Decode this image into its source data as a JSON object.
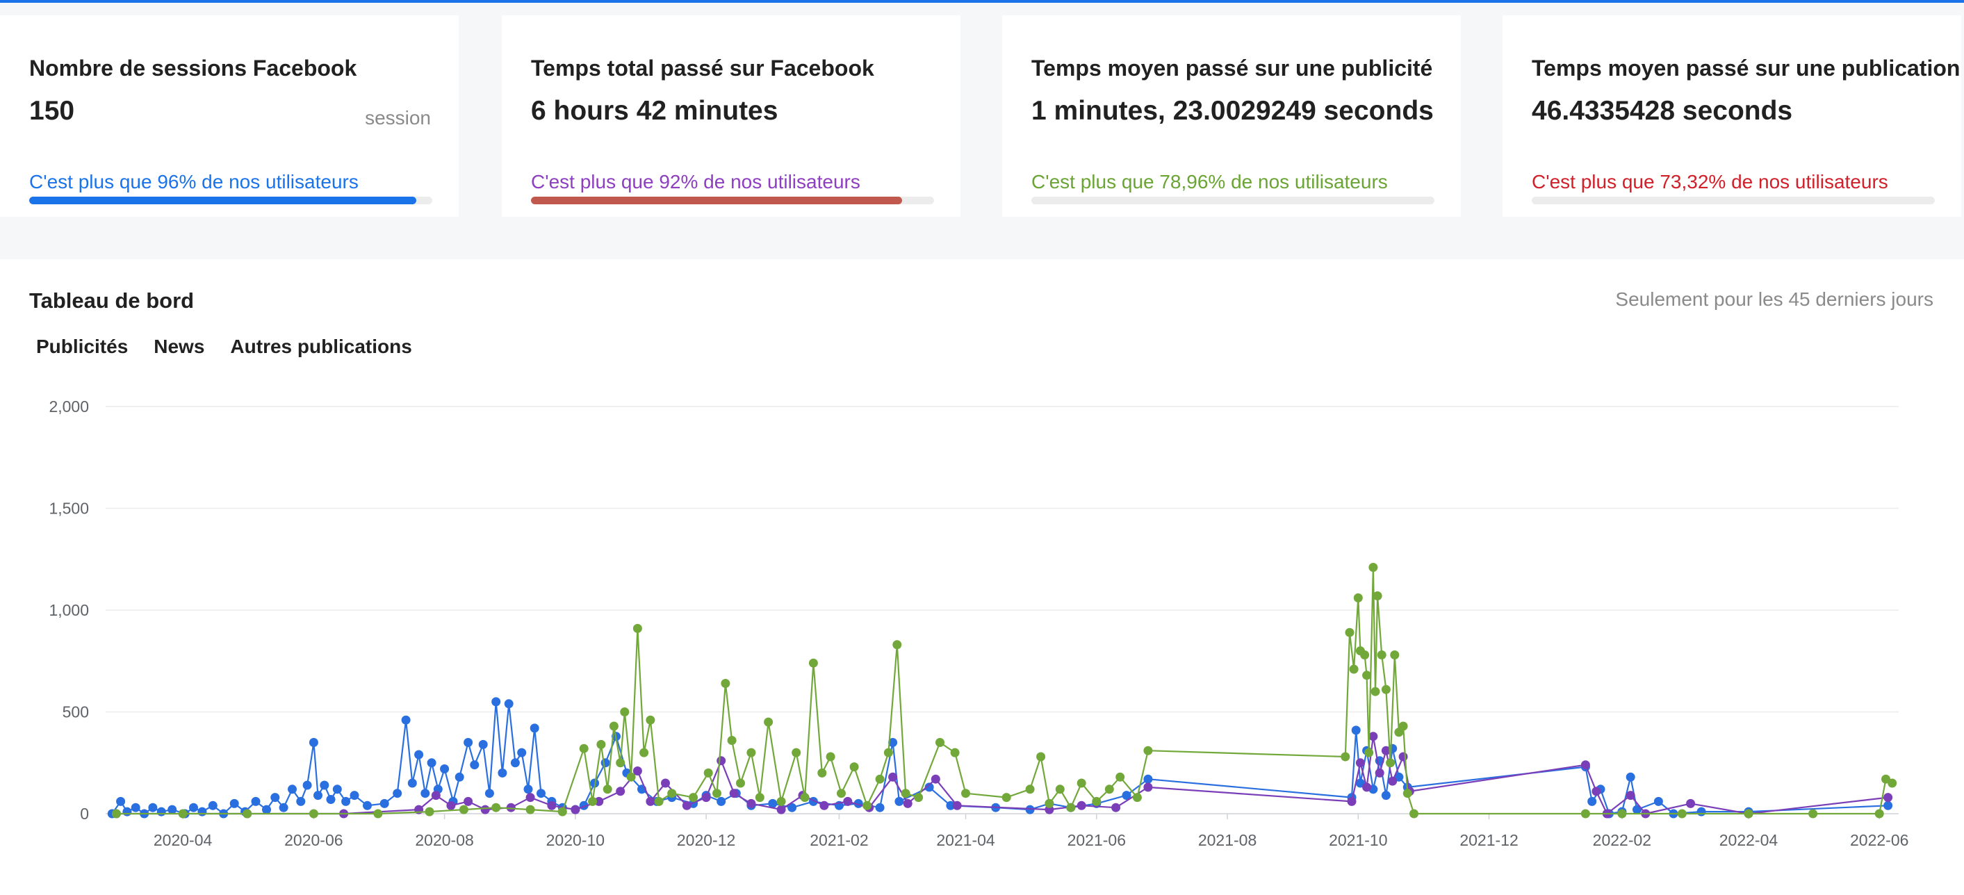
{
  "cards": [
    {
      "title": "Nombre de sessions Facebook",
      "value": "150",
      "unit": "session",
      "compare": "C'est plus que 96% de nos utilisateurs",
      "percent": 96,
      "text_color": "#1a73e8",
      "bar_color": "#1a73e8"
    },
    {
      "title": "Temps total passé sur Facebook",
      "value": "6 hours 42 minutes",
      "unit": "",
      "compare": "C'est plus que 92% de nos utilisateurs",
      "percent": 92,
      "text_color": "#8e3fc0",
      "bar_color": "#c0584e"
    },
    {
      "title": "Temps moyen passé sur une publicité",
      "value": "1 minutes, 23.0029249 seconds",
      "unit": "",
      "compare": "C'est plus que 78,96% de nos utilisateurs",
      "percent": 0,
      "text_color": "#6aa435",
      "bar_color": "#6aa435"
    },
    {
      "title": "Temps moyen passé sur une publication",
      "value": "46.4335428 seconds",
      "unit": "",
      "compare": "C'est plus que 73,32% de nos utilisateurs",
      "percent": 0,
      "text_color": "#d0202a",
      "bar_color": "#d0202a"
    }
  ],
  "dashboard": {
    "title": "Tableau de bord",
    "note": "Seulement pour les 45 derniers jours",
    "legend": [
      {
        "label": "Publicités",
        "color": "#2a6fe0"
      },
      {
        "label": "News",
        "color": "#7a3fb8"
      },
      {
        "label": "Autres publications",
        "color": "#72a83a"
      }
    ]
  },
  "chart_data": {
    "type": "line",
    "title": "",
    "xlabel": "",
    "ylabel": "",
    "x_type": "date",
    "xlim": [
      "2020-02-25",
      "2022-06-10"
    ],
    "ylim": [
      0,
      2000
    ],
    "yticks": [
      0,
      500,
      1000,
      1500,
      2000
    ],
    "ytick_labels": [
      "0",
      "500",
      "1,000",
      "1,500",
      "2,000"
    ],
    "xticks": [
      "2020-04-01",
      "2020-06-01",
      "2020-08-01",
      "2020-10-01",
      "2020-12-01",
      "2021-02-01",
      "2021-04-01",
      "2021-06-01",
      "2021-08-01",
      "2021-10-01",
      "2021-12-01",
      "2022-02-01",
      "2022-04-01",
      "2022-06-01"
    ],
    "xtick_labels": [
      "2020-04",
      "2020-06",
      "2020-08",
      "2020-10",
      "2020-12",
      "2021-02",
      "2021-04",
      "2021-06",
      "2021-08",
      "2021-10",
      "2021-12",
      "2022-02",
      "2022-04",
      "2022-06"
    ],
    "grid": true,
    "series": [
      {
        "name": "Publicités",
        "color": "#2a6fe0",
        "points": [
          [
            "2020-02-28",
            0
          ],
          [
            "2020-03-03",
            60
          ],
          [
            "2020-03-06",
            10
          ],
          [
            "2020-03-10",
            30
          ],
          [
            "2020-03-14",
            0
          ],
          [
            "2020-03-18",
            30
          ],
          [
            "2020-03-22",
            10
          ],
          [
            "2020-03-27",
            20
          ],
          [
            "2020-04-02",
            0
          ],
          [
            "2020-04-06",
            30
          ],
          [
            "2020-04-10",
            10
          ],
          [
            "2020-04-15",
            40
          ],
          [
            "2020-04-20",
            0
          ],
          [
            "2020-04-25",
            50
          ],
          [
            "2020-04-30",
            10
          ],
          [
            "2020-05-05",
            60
          ],
          [
            "2020-05-10",
            20
          ],
          [
            "2020-05-14",
            80
          ],
          [
            "2020-05-18",
            30
          ],
          [
            "2020-05-22",
            120
          ],
          [
            "2020-05-26",
            60
          ],
          [
            "2020-05-29",
            140
          ],
          [
            "2020-06-01",
            350
          ],
          [
            "2020-06-03",
            90
          ],
          [
            "2020-06-06",
            140
          ],
          [
            "2020-06-09",
            70
          ],
          [
            "2020-06-12",
            120
          ],
          [
            "2020-06-16",
            60
          ],
          [
            "2020-06-20",
            90
          ],
          [
            "2020-06-26",
            40
          ],
          [
            "2020-07-04",
            50
          ],
          [
            "2020-07-10",
            100
          ],
          [
            "2020-07-14",
            460
          ],
          [
            "2020-07-17",
            150
          ],
          [
            "2020-07-20",
            290
          ],
          [
            "2020-07-23",
            100
          ],
          [
            "2020-07-26",
            250
          ],
          [
            "2020-07-29",
            120
          ],
          [
            "2020-08-01",
            220
          ],
          [
            "2020-08-05",
            60
          ],
          [
            "2020-08-08",
            180
          ],
          [
            "2020-08-12",
            350
          ],
          [
            "2020-08-15",
            240
          ],
          [
            "2020-08-19",
            340
          ],
          [
            "2020-08-22",
            100
          ],
          [
            "2020-08-25",
            550
          ],
          [
            "2020-08-28",
            200
          ],
          [
            "2020-08-31",
            540
          ],
          [
            "2020-09-03",
            250
          ],
          [
            "2020-09-06",
            300
          ],
          [
            "2020-09-09",
            120
          ],
          [
            "2020-09-12",
            420
          ],
          [
            "2020-09-15",
            100
          ],
          [
            "2020-09-20",
            60
          ],
          [
            "2020-09-25",
            30
          ],
          [
            "2020-10-01",
            20
          ],
          [
            "2020-10-05",
            40
          ],
          [
            "2020-10-10",
            150
          ],
          [
            "2020-10-15",
            250
          ],
          [
            "2020-10-20",
            380
          ],
          [
            "2020-10-25",
            200
          ],
          [
            "2020-11-01",
            120
          ],
          [
            "2020-11-08",
            60
          ],
          [
            "2020-11-15",
            80
          ],
          [
            "2020-11-25",
            50
          ],
          [
            "2020-12-01",
            90
          ],
          [
            "2020-12-08",
            60
          ],
          [
            "2020-12-15",
            100
          ],
          [
            "2020-12-22",
            40
          ],
          [
            "2021-01-01",
            50
          ],
          [
            "2021-01-10",
            30
          ],
          [
            "2021-01-20",
            60
          ],
          [
            "2021-02-01",
            40
          ],
          [
            "2021-02-10",
            50
          ],
          [
            "2021-02-20",
            30
          ],
          [
            "2021-02-26",
            350
          ],
          [
            "2021-03-01",
            60
          ],
          [
            "2021-03-15",
            130
          ],
          [
            "2021-03-25",
            40
          ],
          [
            "2021-04-15",
            30
          ],
          [
            "2021-05-01",
            20
          ],
          [
            "2021-05-10",
            50
          ],
          [
            "2021-05-20",
            30
          ],
          [
            "2021-06-01",
            50
          ],
          [
            "2021-06-15",
            90
          ],
          [
            "2021-06-25",
            170
          ],
          [
            "2021-09-28",
            80
          ],
          [
            "2021-09-30",
            410
          ],
          [
            "2021-10-02",
            150
          ],
          [
            "2021-10-05",
            310
          ],
          [
            "2021-10-08",
            120
          ],
          [
            "2021-10-11",
            260
          ],
          [
            "2021-10-14",
            90
          ],
          [
            "2021-10-17",
            320
          ],
          [
            "2021-10-20",
            180
          ],
          [
            "2021-10-24",
            130
          ],
          [
            "2022-01-15",
            230
          ],
          [
            "2022-01-18",
            60
          ],
          [
            "2022-01-22",
            120
          ],
          [
            "2022-01-26",
            0
          ],
          [
            "2022-02-01",
            10
          ],
          [
            "2022-02-05",
            180
          ],
          [
            "2022-02-08",
            20
          ],
          [
            "2022-02-18",
            60
          ],
          [
            "2022-02-25",
            0
          ],
          [
            "2022-03-10",
            10
          ],
          [
            "2022-04-01",
            10
          ],
          [
            "2022-06-05",
            40
          ]
        ]
      },
      {
        "name": "News",
        "color": "#7a3fb8",
        "points": [
          [
            "2020-03-01",
            0
          ],
          [
            "2020-05-01",
            0
          ],
          [
            "2020-06-15",
            0
          ],
          [
            "2020-07-20",
            20
          ],
          [
            "2020-07-28",
            90
          ],
          [
            "2020-08-04",
            40
          ],
          [
            "2020-08-12",
            60
          ],
          [
            "2020-08-20",
            20
          ],
          [
            "2020-09-01",
            30
          ],
          [
            "2020-09-10",
            80
          ],
          [
            "2020-09-20",
            40
          ],
          [
            "2020-10-01",
            20
          ],
          [
            "2020-10-12",
            60
          ],
          [
            "2020-10-22",
            110
          ],
          [
            "2020-10-30",
            210
          ],
          [
            "2020-11-05",
            60
          ],
          [
            "2020-11-12",
            150
          ],
          [
            "2020-11-22",
            40
          ],
          [
            "2020-12-01",
            80
          ],
          [
            "2020-12-08",
            260
          ],
          [
            "2020-12-14",
            100
          ],
          [
            "2020-12-22",
            50
          ],
          [
            "2021-01-05",
            20
          ],
          [
            "2021-01-15",
            90
          ],
          [
            "2021-01-25",
            40
          ],
          [
            "2021-02-05",
            60
          ],
          [
            "2021-02-15",
            30
          ],
          [
            "2021-02-26",
            180
          ],
          [
            "2021-03-05",
            50
          ],
          [
            "2021-03-18",
            170
          ],
          [
            "2021-03-28",
            40
          ],
          [
            "2021-05-10",
            20
          ],
          [
            "2021-05-25",
            40
          ],
          [
            "2021-06-10",
            30
          ],
          [
            "2021-06-25",
            130
          ],
          [
            "2021-09-28",
            60
          ],
          [
            "2021-10-02",
            250
          ],
          [
            "2021-10-05",
            130
          ],
          [
            "2021-10-08",
            380
          ],
          [
            "2021-10-11",
            200
          ],
          [
            "2021-10-14",
            310
          ],
          [
            "2021-10-17",
            160
          ],
          [
            "2021-10-22",
            280
          ],
          [
            "2021-10-25",
            110
          ],
          [
            "2022-01-15",
            240
          ],
          [
            "2022-01-20",
            110
          ],
          [
            "2022-01-25",
            0
          ],
          [
            "2022-02-05",
            90
          ],
          [
            "2022-02-12",
            0
          ],
          [
            "2022-03-05",
            50
          ],
          [
            "2022-04-01",
            0
          ],
          [
            "2022-06-05",
            80
          ]
        ]
      },
      {
        "name": "Autres publications",
        "color": "#72a83a",
        "points": [
          [
            "2020-03-01",
            0
          ],
          [
            "2020-04-01",
            0
          ],
          [
            "2020-05-01",
            0
          ],
          [
            "2020-06-01",
            0
          ],
          [
            "2020-07-01",
            0
          ],
          [
            "2020-07-25",
            10
          ],
          [
            "2020-08-10",
            20
          ],
          [
            "2020-08-25",
            30
          ],
          [
            "2020-09-10",
            20
          ],
          [
            "2020-09-25",
            10
          ],
          [
            "2020-10-05",
            320
          ],
          [
            "2020-10-09",
            60
          ],
          [
            "2020-10-13",
            340
          ],
          [
            "2020-10-16",
            120
          ],
          [
            "2020-10-19",
            430
          ],
          [
            "2020-10-22",
            250
          ],
          [
            "2020-10-24",
            500
          ],
          [
            "2020-10-27",
            180
          ],
          [
            "2020-10-30",
            910
          ],
          [
            "2020-11-02",
            300
          ],
          [
            "2020-11-05",
            460
          ],
          [
            "2020-11-09",
            60
          ],
          [
            "2020-11-15",
            100
          ],
          [
            "2020-11-25",
            80
          ],
          [
            "2020-12-02",
            200
          ],
          [
            "2020-12-06",
            100
          ],
          [
            "2020-12-10",
            640
          ],
          [
            "2020-12-13",
            360
          ],
          [
            "2020-12-17",
            150
          ],
          [
            "2020-12-22",
            300
          ],
          [
            "2020-12-26",
            80
          ],
          [
            "2020-12-30",
            450
          ],
          [
            "2021-01-05",
            60
          ],
          [
            "2021-01-12",
            300
          ],
          [
            "2021-01-16",
            80
          ],
          [
            "2021-01-20",
            740
          ],
          [
            "2021-01-24",
            200
          ],
          [
            "2021-01-28",
            280
          ],
          [
            "2021-02-02",
            100
          ],
          [
            "2021-02-08",
            230
          ],
          [
            "2021-02-14",
            40
          ],
          [
            "2021-02-20",
            170
          ],
          [
            "2021-02-24",
            300
          ],
          [
            "2021-02-28",
            830
          ],
          [
            "2021-03-04",
            100
          ],
          [
            "2021-03-10",
            80
          ],
          [
            "2021-03-20",
            350
          ],
          [
            "2021-03-27",
            300
          ],
          [
            "2021-04-01",
            100
          ],
          [
            "2021-04-20",
            80
          ],
          [
            "2021-05-01",
            120
          ],
          [
            "2021-05-06",
            280
          ],
          [
            "2021-05-10",
            50
          ],
          [
            "2021-05-15",
            120
          ],
          [
            "2021-05-20",
            30
          ],
          [
            "2021-05-25",
            150
          ],
          [
            "2021-06-01",
            60
          ],
          [
            "2021-06-07",
            120
          ],
          [
            "2021-06-12",
            180
          ],
          [
            "2021-06-20",
            80
          ],
          [
            "2021-06-25",
            310
          ],
          [
            "2021-09-25",
            280
          ],
          [
            "2021-09-27",
            890
          ],
          [
            "2021-09-29",
            710
          ],
          [
            "2021-10-01",
            1060
          ],
          [
            "2021-10-02",
            800
          ],
          [
            "2021-10-04",
            780
          ],
          [
            "2021-10-05",
            680
          ],
          [
            "2021-10-06",
            300
          ],
          [
            "2021-10-08",
            1210
          ],
          [
            "2021-10-09",
            600
          ],
          [
            "2021-10-10",
            1070
          ],
          [
            "2021-10-12",
            780
          ],
          [
            "2021-10-14",
            610
          ],
          [
            "2021-10-16",
            250
          ],
          [
            "2021-10-18",
            780
          ],
          [
            "2021-10-20",
            400
          ],
          [
            "2021-10-22",
            430
          ],
          [
            "2021-10-24",
            100
          ],
          [
            "2021-10-27",
            0
          ],
          [
            "2022-01-15",
            0
          ],
          [
            "2022-02-01",
            0
          ],
          [
            "2022-03-01",
            0
          ],
          [
            "2022-04-01",
            0
          ],
          [
            "2022-05-01",
            0
          ],
          [
            "2022-06-01",
            0
          ],
          [
            "2022-06-04",
            170
          ],
          [
            "2022-06-07",
            150
          ]
        ]
      }
    ]
  }
}
